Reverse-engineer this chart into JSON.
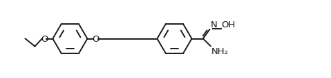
{
  "background_color": "#ffffff",
  "line_color": "#1a1a1a",
  "line_width": 1.4,
  "font_size": 9.5,
  "fig_width": 4.79,
  "fig_height": 1.15,
  "dpi": 100,
  "xlim": [
    0,
    9.5
  ],
  "ylim": [
    -0.8,
    1.8
  ],
  "r1cx": 1.55,
  "r1cy": 0.5,
  "r2cx": 5.05,
  "r2cy": 0.5,
  "ring_r": 0.58,
  "label_O1": "O",
  "label_O2": "O",
  "label_N": "N",
  "label_OH": "OH",
  "label_NH2": "NH₂"
}
